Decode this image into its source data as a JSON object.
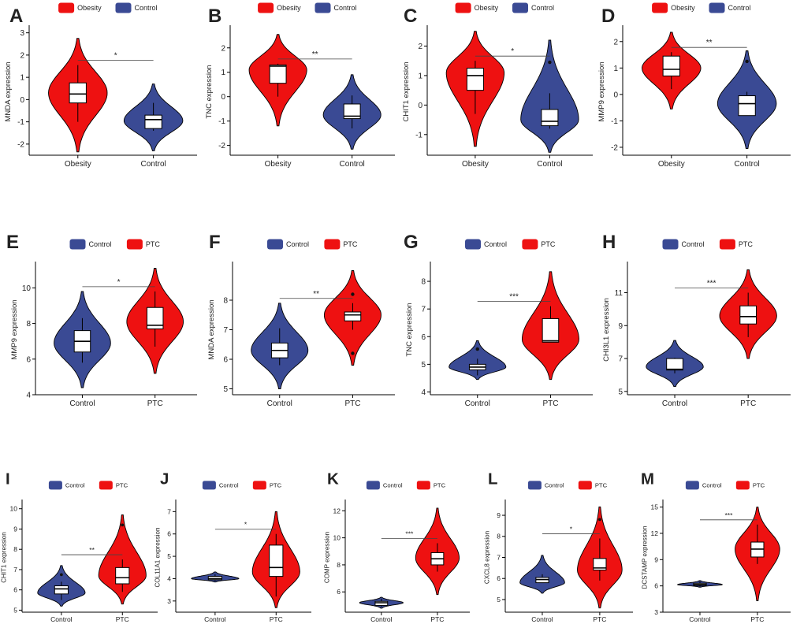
{
  "colors": {
    "Obesity": "#ee1111",
    "PTC": "#ee1111",
    "Control": "#3a4a94"
  },
  "chart_data": [
    {
      "panel": "A",
      "type": "violin",
      "ylabel": "MNDA expression",
      "groups": [
        "Obesity",
        "Control"
      ],
      "legend": [
        "Obesity",
        "Control"
      ],
      "yticks": [
        -2,
        -1,
        0,
        1,
        2,
        3
      ],
      "ylim": [
        -2.5,
        3.2
      ],
      "boxes": [
        {
          "min": -1.0,
          "q1": -0.15,
          "median": 0.25,
          "q3": 0.75,
          "max": 1.55
        },
        {
          "min": -1.4,
          "q1": -1.3,
          "median": -0.9,
          "q3": -0.7,
          "max": -0.15
        }
      ],
      "violin": [
        {
          "min": -2.35,
          "max": 2.75,
          "mode": 0.3
        },
        {
          "min": -2.3,
          "max": 0.7,
          "mode": -0.95
        }
      ],
      "outliers": [
        [],
        []
      ],
      "significance": "*"
    },
    {
      "panel": "B",
      "type": "violin",
      "ylabel": "TNC expression",
      "groups": [
        "Obesity",
        "Control"
      ],
      "legend": [
        "Obesity",
        "Control"
      ],
      "yticks": [
        -2,
        -1,
        0,
        1,
        2
      ],
      "ylim": [
        -2.4,
        2.8
      ],
      "boxes": [
        {
          "min": 0.0,
          "q1": 0.55,
          "median": 1.25,
          "q3": 1.3,
          "max": 1.35
        },
        {
          "min": -1.3,
          "q1": -0.9,
          "median": -0.8,
          "q3": -0.3,
          "max": 0.05
        }
      ],
      "violin": [
        {
          "min": -1.2,
          "max": 2.55,
          "mode": 1.1
        },
        {
          "min": -2.15,
          "max": 0.9,
          "mode": -0.75
        }
      ],
      "outliers": [
        [],
        []
      ],
      "significance": "**"
    },
    {
      "panel": "C",
      "type": "violin",
      "ylabel": "CHIT1 expression",
      "groups": [
        "Obesity",
        "Control"
      ],
      "legend": [
        "Obesity",
        "Control"
      ],
      "yticks": [
        -1,
        0,
        1,
        2
      ],
      "ylim": [
        -1.7,
        2.6
      ],
      "boxes": [
        {
          "min": -0.3,
          "q1": 0.5,
          "median": 1.0,
          "q3": 1.25,
          "max": 1.5
        },
        {
          "min": -0.8,
          "q1": -0.7,
          "median": -0.55,
          "q3": -0.15,
          "max": 0.4
        }
      ],
      "violin": [
        {
          "min": -1.4,
          "max": 2.5,
          "mode": 1.1
        },
        {
          "min": -1.6,
          "max": 2.2,
          "mode": -0.5
        }
      ],
      "outliers": [
        [],
        [
          1.45
        ]
      ],
      "significance": "*"
    },
    {
      "panel": "D",
      "type": "violin",
      "ylabel": "MMP9 expression",
      "groups": [
        "Obesity",
        "Control"
      ],
      "legend": [
        "Obesity",
        "Control"
      ],
      "yticks": [
        -2,
        -1,
        0,
        1,
        2
      ],
      "ylim": [
        -2.3,
        2.5
      ],
      "boxes": [
        {
          "min": 0.2,
          "q1": 0.7,
          "median": 0.95,
          "q3": 1.45,
          "max": 1.6
        },
        {
          "min": -0.8,
          "q1": -0.8,
          "median": -0.35,
          "q3": -0.05,
          "max": 0.1
        }
      ],
      "violin": [
        {
          "min": -0.55,
          "max": 2.35,
          "mode": 1.0
        },
        {
          "min": -2.05,
          "max": 1.65,
          "mode": -0.35
        }
      ],
      "outliers": [
        [],
        [
          1.25
        ]
      ],
      "significance": "**"
    },
    {
      "panel": "E",
      "type": "violin",
      "ylabel": "MMP9 expression",
      "groups": [
        "Control",
        "PTC"
      ],
      "legend": [
        "Control",
        "PTC"
      ],
      "yticks": [
        4,
        6,
        8,
        10
      ],
      "ylim": [
        4.0,
        11.3
      ],
      "boxes": [
        {
          "min": 5.8,
          "q1": 6.4,
          "median": 7.0,
          "q3": 7.6,
          "max": 8.3
        },
        {
          "min": 6.7,
          "q1": 7.7,
          "median": 7.9,
          "q3": 8.9,
          "max": 9.8
        }
      ],
      "violin": [
        {
          "min": 4.4,
          "max": 9.8,
          "mode": 6.9
        },
        {
          "min": 5.2,
          "max": 11.1,
          "mode": 8.1
        }
      ],
      "outliers": [
        [],
        []
      ],
      "significance": "*"
    },
    {
      "panel": "F",
      "type": "violin",
      "ylabel": "MNDA expression",
      "groups": [
        "Control",
        "PTC"
      ],
      "legend": [
        "Control",
        "PTC"
      ],
      "yticks": [
        5,
        6,
        7,
        8
      ],
      "ylim": [
        4.8,
        9.2
      ],
      "boxes": [
        {
          "min": 5.8,
          "q1": 6.05,
          "median": 6.3,
          "q3": 6.55,
          "max": 7.05
        },
        {
          "min": 7.0,
          "q1": 7.3,
          "median": 7.5,
          "q3": 7.6,
          "max": 7.9
        }
      ],
      "violin": [
        {
          "min": 5.0,
          "max": 7.9,
          "mode": 6.3
        },
        {
          "min": 5.8,
          "max": 9.0,
          "mode": 7.5
        }
      ],
      "outliers": [
        [],
        [
          8.2,
          6.2
        ]
      ],
      "significance": "**"
    },
    {
      "panel": "G",
      "type": "violin",
      "ylabel": "TNC expression",
      "groups": [
        "Control",
        "PTC"
      ],
      "legend": [
        "Control",
        "PTC"
      ],
      "yticks": [
        4,
        5,
        6,
        7,
        8
      ],
      "ylim": [
        3.9,
        8.6
      ],
      "boxes": [
        {
          "min": 4.6,
          "q1": 4.8,
          "median": 4.9,
          "q3": 5.0,
          "max": 5.2
        },
        {
          "min": 5.8,
          "q1": 5.8,
          "median": 5.85,
          "q3": 6.65,
          "max": 7.1
        }
      ],
      "violin": [
        {
          "min": 4.45,
          "max": 5.85,
          "mode": 4.9
        },
        {
          "min": 4.45,
          "max": 8.35,
          "mode": 5.9
        }
      ],
      "outliers": [
        [
          5.55
        ],
        []
      ],
      "significance": "***"
    },
    {
      "panel": "H",
      "type": "violin",
      "ylabel": "CHI3L1 expression",
      "groups": [
        "Control",
        "PTC"
      ],
      "legend": [
        "Control",
        "PTC"
      ],
      "yticks": [
        5,
        7,
        9,
        11
      ],
      "ylim": [
        4.8,
        12.7
      ],
      "boxes": [
        {
          "min": 6.1,
          "q1": 6.3,
          "median": 6.35,
          "q3": 7.0,
          "max": 7.05
        },
        {
          "min": 8.3,
          "q1": 9.1,
          "median": 9.55,
          "q3": 10.2,
          "max": 11.0
        }
      ],
      "violin": [
        {
          "min": 5.3,
          "max": 8.1,
          "mode": 6.5
        },
        {
          "min": 7.0,
          "max": 12.4,
          "mode": 9.6
        }
      ],
      "outliers": [
        [],
        []
      ],
      "significance": "***"
    },
    {
      "panel": "I",
      "type": "violin",
      "ylabel": "CHIT1 expression",
      "groups": [
        "Control",
        "PTC"
      ],
      "legend": [
        "Control",
        "PTC"
      ],
      "yticks": [
        5,
        6,
        7,
        8,
        9,
        10
      ],
      "ylim": [
        4.9,
        10.3
      ],
      "boxes": [
        {
          "min": 5.5,
          "q1": 5.8,
          "median": 6.05,
          "q3": 6.2,
          "max": 6.4
        },
        {
          "min": 5.9,
          "q1": 6.3,
          "median": 6.6,
          "q3": 7.1,
          "max": 7.5
        }
      ],
      "violin": [
        {
          "min": 5.2,
          "max": 7.2,
          "mode": 5.85
        },
        {
          "min": 5.3,
          "max": 9.7,
          "mode": 6.7
        }
      ],
      "outliers": [
        [
          6.75
        ],
        [
          9.2
        ]
      ],
      "significance": "**"
    },
    {
      "panel": "J",
      "type": "violin",
      "ylabel": "COL11A1 expression",
      "groups": [
        "Control",
        "PTC"
      ],
      "legend": [
        "Control",
        "PTC"
      ],
      "yticks": [
        3,
        4,
        5,
        6,
        7
      ],
      "ylim": [
        2.5,
        7.4
      ],
      "boxes": [
        {
          "min": 3.9,
          "q1": 3.95,
          "median": 4.0,
          "q3": 4.1,
          "max": 4.2
        },
        {
          "min": 3.2,
          "q1": 4.1,
          "median": 4.5,
          "q3": 5.5,
          "max": 6.0
        }
      ],
      "violin": [
        {
          "min": 3.85,
          "max": 4.3,
          "mode": 4.0
        },
        {
          "min": 2.7,
          "max": 7.0,
          "mode": 4.3
        }
      ],
      "outliers": [
        [],
        []
      ],
      "significance": "*"
    },
    {
      "panel": "K",
      "type": "violin",
      "ylabel": "COMP expression",
      "groups": [
        "Control",
        "PTC"
      ],
      "legend": [
        "Control",
        "PTC"
      ],
      "yticks": [
        6,
        8,
        10,
        12
      ],
      "ylim": [
        4.5,
        12.6
      ],
      "boxes": [
        {
          "min": 4.9,
          "q1": 5.0,
          "median": 5.2,
          "q3": 5.3,
          "max": 5.5
        },
        {
          "min": 7.5,
          "q1": 8.0,
          "median": 8.45,
          "q3": 8.9,
          "max": 9.6
        }
      ],
      "violin": [
        {
          "min": 4.8,
          "max": 5.6,
          "mode": 5.2
        },
        {
          "min": 5.8,
          "max": 12.2,
          "mode": 8.5
        }
      ],
      "outliers": [
        [],
        []
      ],
      "significance": "***"
    },
    {
      "panel": "L",
      "type": "violin",
      "ylabel": "CXCL8 expression",
      "groups": [
        "Control",
        "PTC"
      ],
      "legend": [
        "Control",
        "PTC"
      ],
      "yticks": [
        5,
        6,
        7,
        8,
        9
      ],
      "ylim": [
        4.4,
        9.6
      ],
      "boxes": [
        {
          "min": 5.8,
          "q1": 5.8,
          "median": 5.95,
          "q3": 6.05,
          "max": 6.2
        },
        {
          "min": 5.9,
          "q1": 6.4,
          "median": 6.5,
          "q3": 6.95,
          "max": 7.9
        }
      ],
      "violin": [
        {
          "min": 5.3,
          "max": 7.1,
          "mode": 5.8
        },
        {
          "min": 4.6,
          "max": 9.4,
          "mode": 6.4
        }
      ],
      "outliers": [
        [],
        [
          8.8
        ]
      ],
      "significance": "*"
    },
    {
      "panel": "M",
      "type": "violin",
      "ylabel": "DCSTAMP expression",
      "groups": [
        "Control",
        "PTC"
      ],
      "legend": [
        "Control",
        "PTC"
      ],
      "yticks": [
        3,
        6,
        9,
        12,
        15
      ],
      "ylim": [
        3,
        15.5
      ],
      "boxes": [
        {
          "min": 5.9,
          "q1": 6.05,
          "median": 6.15,
          "q3": 6.3,
          "max": 6.5
        },
        {
          "min": 8.5,
          "q1": 9.3,
          "median": 10.2,
          "q3": 11.0,
          "max": 13.0
        }
      ],
      "violin": [
        {
          "min": 5.85,
          "max": 6.6,
          "mode": 6.15
        },
        {
          "min": 4.3,
          "max": 15.0,
          "mode": 10.2
        }
      ],
      "outliers": [
        [],
        []
      ],
      "significance": "***"
    }
  ]
}
